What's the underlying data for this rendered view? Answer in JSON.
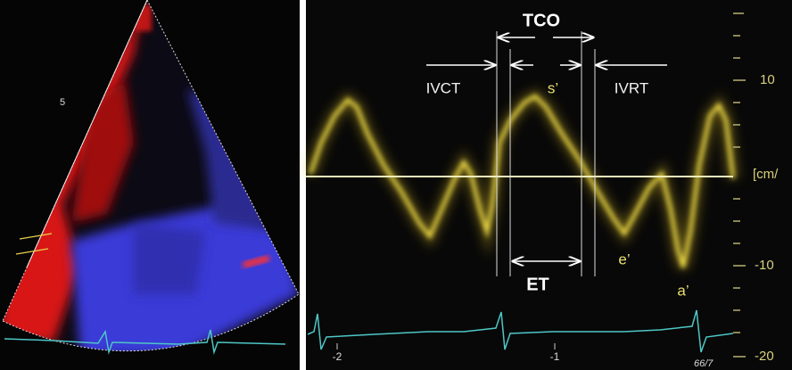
{
  "left_panel": {
    "depth_label": "5"
  },
  "right_panel": {
    "labels": {
      "tco": "TCO",
      "ivct": "IVCT",
      "s_prime": "s’",
      "ivrt": "IVRT",
      "et": "ET",
      "e_prime": "e’",
      "a_prime": "a’"
    },
    "scale": {
      "top": "10",
      "unit": "[cm/",
      "minus_ten": "-10",
      "minus_twenty": "-20"
    },
    "time_axis": {
      "minus_two": "-2",
      "minus_one": "-1"
    },
    "footer": "66/7"
  }
}
